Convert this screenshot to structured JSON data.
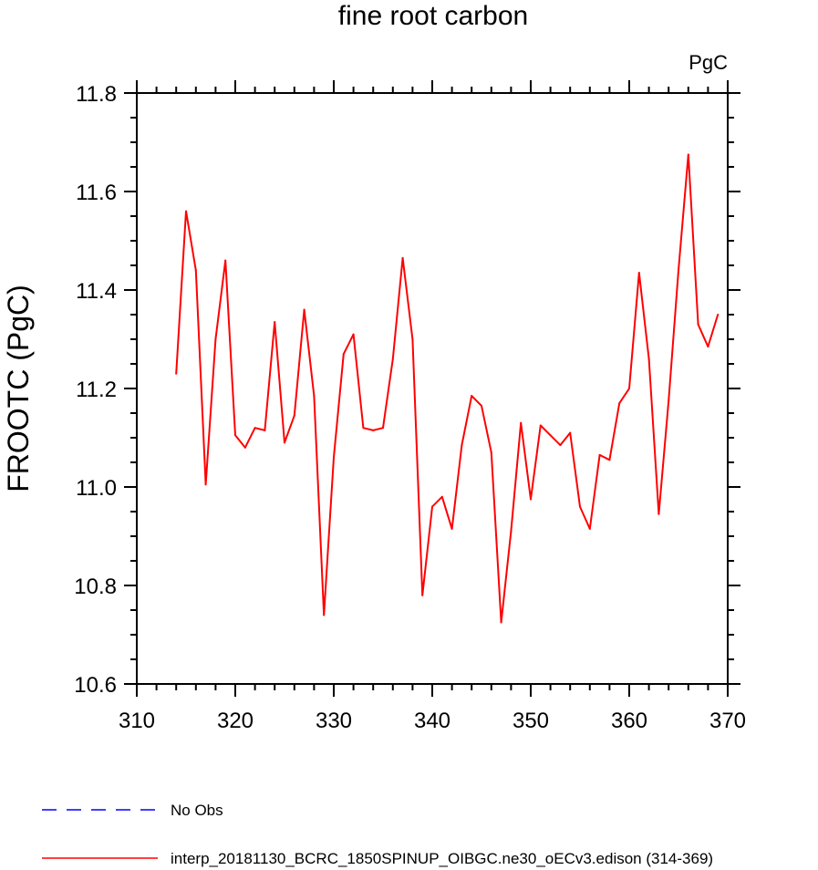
{
  "chart_data": {
    "type": "line",
    "title": "fine root carbon",
    "units_label": "PgC",
    "ylabel": "FROOTC  (PgC)",
    "xlabel": "",
    "xlim": [
      310,
      370
    ],
    "ylim": [
      10.6,
      11.8
    ],
    "x_ticks": [
      310,
      320,
      330,
      340,
      350,
      360,
      370
    ],
    "y_ticks": [
      "10.6",
      "10.8",
      "11.0",
      "11.2",
      "11.4",
      "11.6",
      "11.8"
    ],
    "grid": false,
    "legend_position": "bottom",
    "series": [
      {
        "name": "interp_20181130_BCRC_1850SPINUP_OIBGC.ne30_oECv3.edison (314-369)",
        "color": "#ff0000",
        "style": "solid",
        "x": [
          314,
          315,
          316,
          317,
          318,
          319,
          320,
          321,
          322,
          323,
          324,
          325,
          326,
          327,
          328,
          329,
          330,
          331,
          332,
          333,
          334,
          335,
          336,
          337,
          338,
          339,
          340,
          341,
          342,
          343,
          344,
          345,
          346,
          347,
          348,
          349,
          350,
          351,
          352,
          353,
          354,
          355,
          356,
          357,
          358,
          359,
          360,
          361,
          362,
          363,
          364,
          365,
          366,
          367,
          368,
          369
        ],
        "values": [
          11.23,
          11.56,
          11.44,
          11.005,
          11.3,
          11.46,
          11.105,
          11.08,
          11.12,
          11.115,
          11.335,
          11.09,
          11.145,
          11.36,
          11.185,
          10.74,
          11.06,
          11.27,
          11.31,
          11.12,
          11.115,
          11.12,
          11.26,
          11.465,
          11.3,
          10.78,
          10.96,
          10.98,
          10.915,
          11.085,
          11.185,
          11.165,
          11.07,
          10.725,
          10.91,
          11.13,
          10.975,
          11.125,
          11.105,
          11.085,
          11.11,
          10.96,
          10.915,
          11.065,
          11.055,
          11.17,
          11.2,
          11.435,
          11.26,
          10.945,
          11.175,
          11.44,
          11.675,
          11.33,
          11.285,
          11.35
        ]
      }
    ],
    "legend": [
      {
        "label": "No Obs",
        "color": "#0000ff",
        "style": "dashed"
      },
      {
        "label": "interp_20181130_BCRC_1850SPINUP_OIBGC.ne30_oECv3.edison (314-369)",
        "color": "#ff0000",
        "style": "solid"
      }
    ]
  }
}
